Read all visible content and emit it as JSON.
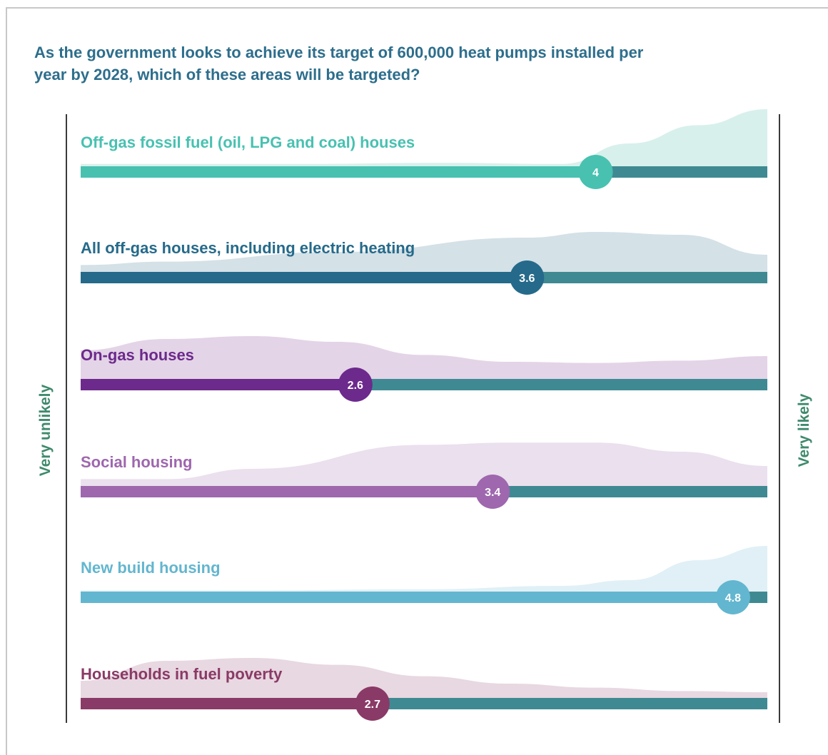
{
  "title": "As the government looks to achieve its target of 600,000 heat pumps installed per year by 2028, which of these areas will be targeted?",
  "axis": {
    "left_label": "Very unlikely",
    "right_label": "Very likely"
  },
  "colors": {
    "track": "#3f8a92",
    "axis_text": "#3f8a6c",
    "title": "#2d6e8c"
  },
  "chart_data": {
    "type": "bar",
    "xlim": [
      1,
      5
    ],
    "categories": [
      "Off-gas fossil fuel (oil, LPG and coal) houses",
      "All off-gas houses, including electric heating",
      "On-gas houses",
      "Social housing",
      "New build housing",
      "Households in fuel poverty"
    ],
    "values": [
      4,
      3.6,
      2.6,
      3.4,
      4.8,
      2.7
    ],
    "value_labels": [
      "4",
      "3.6",
      "2.6",
      "3.4",
      "4.8",
      "2.7"
    ],
    "series_colors": [
      "#48c1b1",
      "#256a8a",
      "#6c2a8c",
      "#9e67ae",
      "#63b6cf",
      "#8a3a66"
    ],
    "fill_colors": [
      "#d8f0ec",
      "#d4e1e7",
      "#e4d4e7",
      "#ebe0ee",
      "#e0f0f6",
      "#e8d8e1"
    ],
    "distribution_curves": [
      [
        [
          1,
          0.04
        ],
        [
          2.25,
          0.04
        ],
        [
          3.1,
          0.06
        ],
        [
          3.8,
          0.04
        ],
        [
          4.2,
          0.4
        ],
        [
          4.6,
          0.72
        ],
        [
          5,
          1.0
        ]
      ],
      [
        [
          1,
          0.12
        ],
        [
          1.5,
          0.18
        ],
        [
          2.5,
          0.35
        ],
        [
          3.6,
          0.6
        ],
        [
          4.0,
          0.7
        ],
        [
          4.5,
          0.65
        ],
        [
          5,
          0.3
        ]
      ],
      [
        [
          1,
          0.5
        ],
        [
          1.5,
          0.7
        ],
        [
          2,
          0.75
        ],
        [
          2.5,
          0.65
        ],
        [
          3.0,
          0.42
        ],
        [
          3.5,
          0.3
        ],
        [
          4.0,
          0.28
        ],
        [
          4.5,
          0.32
        ],
        [
          5,
          0.4
        ]
      ],
      [
        [
          1,
          0.12
        ],
        [
          1.5,
          0.12
        ],
        [
          2,
          0.3
        ],
        [
          3,
          0.72
        ],
        [
          3.5,
          0.76
        ],
        [
          4,
          0.76
        ],
        [
          4.5,
          0.6
        ],
        [
          5,
          0.35
        ]
      ],
      [
        [
          1,
          0.02
        ],
        [
          2,
          0.02
        ],
        [
          3,
          0.04
        ],
        [
          3.8,
          0.1
        ],
        [
          4.2,
          0.2
        ],
        [
          4.6,
          0.55
        ],
        [
          5,
          0.8
        ]
      ],
      [
        [
          1,
          0.3
        ],
        [
          1.5,
          0.65
        ],
        [
          2,
          0.7
        ],
        [
          2.5,
          0.58
        ],
        [
          3,
          0.38
        ],
        [
          3.5,
          0.25
        ],
        [
          4,
          0.18
        ],
        [
          4.5,
          0.12
        ],
        [
          5,
          0.1
        ]
      ]
    ]
  }
}
